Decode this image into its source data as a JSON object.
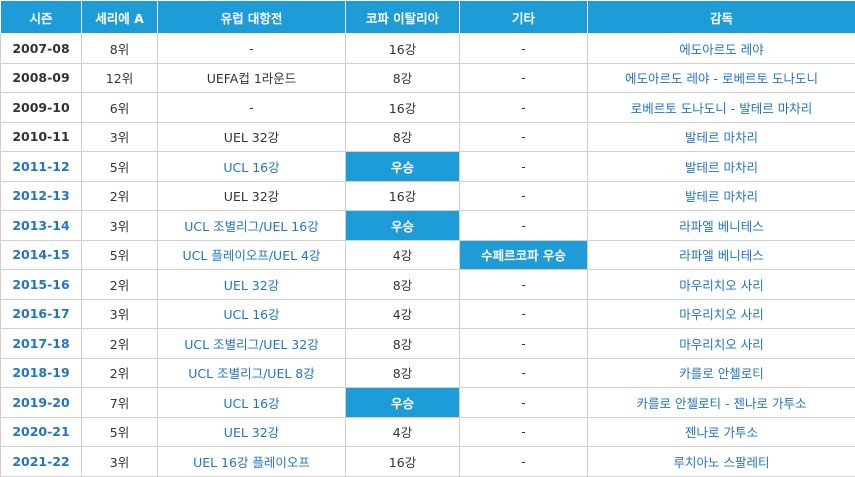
{
  "headers": {
    "season": "시즌",
    "serie_a": "세리에 A",
    "europe": "유럽 대항전",
    "coppa": "코파 이탈리아",
    "other": "기타",
    "manager": "감독"
  },
  "colors": {
    "header_bg": "#1e9cd8",
    "highlight_bg": "#1e9cd8",
    "link": "#2375c4"
  },
  "rows": [
    {
      "season": "2007-08",
      "serie_a": "8위",
      "europe": "-",
      "coppa": "16강",
      "other": "-",
      "manager": "에도아르도 레야"
    },
    {
      "season": "2008-09",
      "serie_a": "12위",
      "europe": "UEFA컵 1라운드",
      "coppa": "8강",
      "other": "-",
      "manager": "에도아르도 레야 - 로베르토 도나도니"
    },
    {
      "season": "2009-10",
      "serie_a": "6위",
      "europe": "-",
      "coppa": "16강",
      "other": "-",
      "manager": "로베르토 도나도니 - 발테르 마차리"
    },
    {
      "season": "2010-11",
      "serie_a": "3위",
      "europe": "UEL 32강",
      "coppa": "8강",
      "other": "-",
      "manager": "발테르 마차리"
    },
    {
      "season": "2011-12",
      "serie_a": "5위",
      "europe": "UCL 16강",
      "coppa": "우승",
      "other": "-",
      "manager": "발테르 마차리"
    },
    {
      "season": "2012-13",
      "serie_a": "2위",
      "europe": "UEL 32강",
      "coppa": "16강",
      "other": "-",
      "manager": "발테르 마차리"
    },
    {
      "season": "2013-14",
      "serie_a": "3위",
      "europe": "UCL 조별리그/UEL 16강",
      "coppa": "우승",
      "other": "-",
      "manager": "라파엘 베니테스"
    },
    {
      "season": "2014-15",
      "serie_a": "5위",
      "europe": "UCL 플레이오프/UEL 4강",
      "coppa": "4강",
      "other": "수페르코파 우승",
      "manager": "라파엘 베니테스"
    },
    {
      "season": "2015-16",
      "serie_a": "2위",
      "europe": "UEL 32강",
      "coppa": "8강",
      "other": "-",
      "manager": "마우리치오 사리"
    },
    {
      "season": "2016-17",
      "serie_a": "3위",
      "europe": "UCL 16강",
      "coppa": "4강",
      "other": "-",
      "manager": "마우리치오 사리"
    },
    {
      "season": "2017-18",
      "serie_a": "2위",
      "europe": "UCL 조별리그/UEL 32강",
      "coppa": "8강",
      "other": "-",
      "manager": "마우리치오 사리"
    },
    {
      "season": "2018-19",
      "serie_a": "2위",
      "europe": "UCL 조별리그/UEL 8강",
      "coppa": "8강",
      "other": "-",
      "manager": "카를로 안첼로티"
    },
    {
      "season": "2019-20",
      "serie_a": "7위",
      "europe": "UCL 16강",
      "coppa": "우승",
      "other": "-",
      "manager": "카를로 안첼로티 - 젠나로 가투소"
    },
    {
      "season": "2020-21",
      "serie_a": "5위",
      "europe": "UEL 32강",
      "coppa": "4강",
      "other": "-",
      "manager": "젠나로 가투소"
    },
    {
      "season": "2021-22",
      "serie_a": "3위",
      "europe": "UEL 16강 플레이오프",
      "coppa": "16강",
      "other": "-",
      "manager": "루치아노 스팔레티"
    }
  ]
}
